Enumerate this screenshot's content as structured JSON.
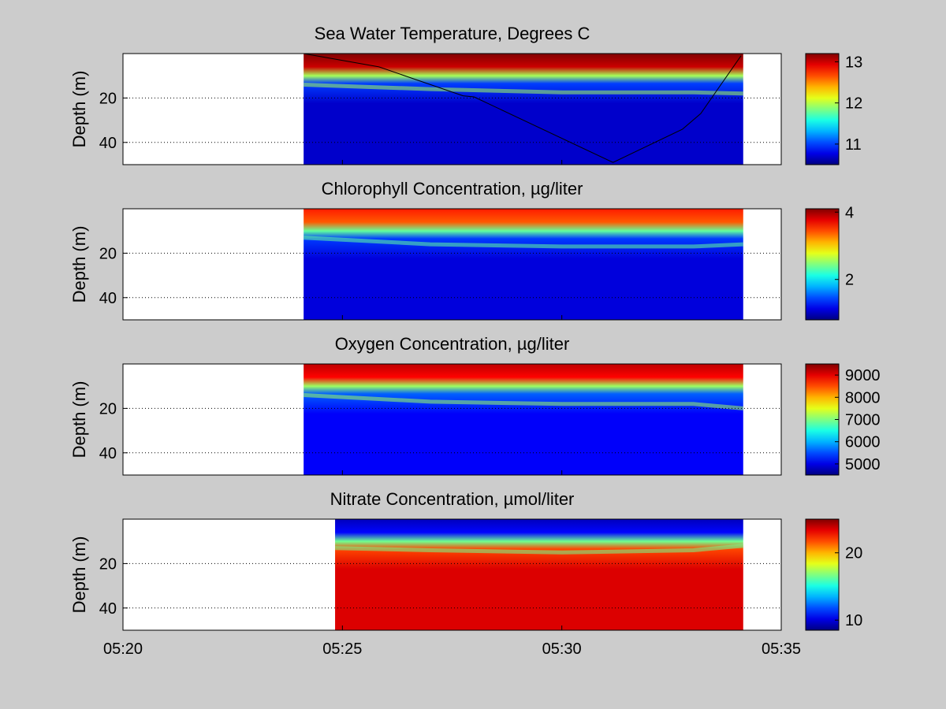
{
  "chart_data": {
    "type": "heatmap",
    "x_ticks": [
      "05:20",
      "05:25",
      "05:30",
      "05:35"
    ],
    "x_range": [
      "05:20",
      "05:35"
    ],
    "panels": [
      {
        "title": "Sea Water Temperature, Degrees C",
        "ylabel": "Depth (m)",
        "y_ticks": [
          20,
          40
        ],
        "y_range": [
          0,
          50
        ],
        "data_x_range": [
          "05:24:07",
          "05:34:08"
        ],
        "colorbar_ticks": [
          11,
          12,
          13
        ],
        "colorbar_range": [
          10.5,
          13.2
        ],
        "surface_value": 13.2,
        "deep_value": 10.7,
        "thermocline_depth": [
          [
            "05:24:07",
            14
          ],
          [
            "05:27:00",
            16
          ],
          [
            "05:30:00",
            17.5
          ],
          [
            "05:33:00",
            17.5
          ],
          [
            "05:34:08",
            18
          ]
        ],
        "track": [
          [
            "05:24:07",
            0
          ],
          [
            "05:25:50",
            6
          ],
          [
            "05:27:45",
            19
          ],
          [
            "05:28:00",
            19.5
          ],
          [
            "05:31:10",
            49
          ],
          [
            "05:32:45",
            34
          ],
          [
            "05:33:10",
            27
          ],
          [
            "05:34:05",
            1
          ]
        ]
      },
      {
        "title": "Chlorophyll Concentration, µg/liter",
        "ylabel": "Depth (m)",
        "y_ticks": [
          20,
          40
        ],
        "y_range": [
          0,
          50
        ],
        "data_x_range": [
          "05:24:07",
          "05:34:08"
        ],
        "colorbar_ticks": [
          2,
          4
        ],
        "colorbar_range": [
          0.8,
          4.1
        ],
        "surface_value": 3.6,
        "deep_value": 1.1,
        "thermocline_depth": [
          [
            "05:24:07",
            13
          ],
          [
            "05:27:00",
            16
          ],
          [
            "05:30:00",
            17
          ],
          [
            "05:33:00",
            17
          ],
          [
            "05:34:08",
            16
          ]
        ]
      },
      {
        "title": "Oxygen Concentration, µg/liter",
        "ylabel": "Depth (m)",
        "y_ticks": [
          20,
          40
        ],
        "y_range": [
          0,
          50
        ],
        "data_x_range": [
          "05:24:07",
          "05:34:08"
        ],
        "colorbar_ticks": [
          5000,
          6000,
          7000,
          8000,
          9000
        ],
        "colorbar_range": [
          4500,
          9500
        ],
        "surface_value": 9200,
        "deep_value": 5100,
        "thermocline_depth": [
          [
            "05:24:07",
            14
          ],
          [
            "05:27:00",
            17
          ],
          [
            "05:30:00",
            18
          ],
          [
            "05:33:00",
            18
          ],
          [
            "05:34:08",
            20
          ]
        ]
      },
      {
        "title": "Nitrate Concentration, µmol/liter",
        "ylabel": "Depth (m)",
        "y_ticks": [
          20,
          40
        ],
        "y_range": [
          0,
          50
        ],
        "data_x_range": [
          "05:24:50",
          "05:34:08"
        ],
        "colorbar_ticks": [
          10,
          20
        ],
        "colorbar_range": [
          8.5,
          25
        ],
        "surface_value": 9.5,
        "deep_value": 23.5,
        "thermocline_depth": [
          [
            "05:24:50",
            13
          ],
          [
            "05:27:00",
            14
          ],
          [
            "05:30:00",
            15
          ],
          [
            "05:33:00",
            14
          ],
          [
            "05:34:08",
            12
          ]
        ]
      }
    ]
  }
}
